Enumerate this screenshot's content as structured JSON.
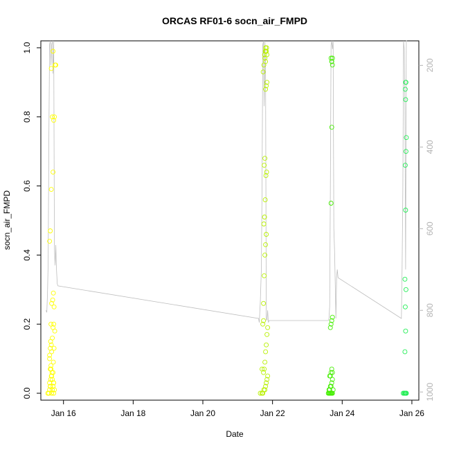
{
  "chart_data": {
    "type": "scatter",
    "title": "ORCAS RF01-6 socn_air_FMPD",
    "xlabel": "Date",
    "ylabel": "socn_air_FMPD",
    "x_unit": "day of January 2016",
    "xlim": [
      15.35,
      26.2
    ],
    "ylim": [
      -0.02,
      1.02
    ],
    "x_ticks": [
      {
        "value": 16,
        "label": "Jan 16"
      },
      {
        "value": 18,
        "label": "Jan 18"
      },
      {
        "value": 20,
        "label": "Jan 20"
      },
      {
        "value": 22,
        "label": "Jan 22"
      },
      {
        "value": 24,
        "label": "Jan 24"
      },
      {
        "value": 26,
        "label": "Jan 26"
      }
    ],
    "y_ticks": [
      "0.0",
      "0.2",
      "0.4",
      "0.6",
      "0.8",
      "1.0"
    ],
    "y2_lim": [
      1020,
      140
    ],
    "y2_ticks": [
      "200",
      "400",
      "600",
      "800",
      "1000"
    ],
    "grid": false,
    "legend": "none",
    "colors": {
      "flight1": "#ffff00",
      "flight2": "#c8f500",
      "flight3": "#99ff00",
      "flight4": "#66ff00",
      "flight5": "#33ff22",
      "flight6": "#22ee55",
      "pressure_line": "#bdbdbd",
      "axes": "#000000",
      "right_axis": "#b3b3b3"
    },
    "series": [
      {
        "color": "#ffff00",
        "x": [
          15.55,
          15.58,
          15.6,
          15.62,
          15.6,
          15.63,
          15.65,
          15.67,
          15.62,
          15.64,
          15.66,
          15.68,
          15.7,
          15.72,
          15.6,
          15.62,
          15.65,
          15.68,
          15.7,
          15.72,
          15.64,
          15.66,
          15.69,
          15.71,
          15.73,
          15.6,
          15.62,
          15.65,
          15.7,
          15.72,
          15.68,
          15.74,
          15.76,
          15.78,
          15.65,
          15.7,
          15.72,
          15.74,
          15.62,
          15.66,
          15.71,
          15.73,
          15.75,
          15.64,
          15.68,
          15.72,
          15.6,
          15.63,
          15.66,
          15.7
        ],
        "y": [
          0.0,
          0.0,
          0.01,
          0.02,
          0.03,
          0.04,
          0.05,
          0.06,
          0.07,
          0.08,
          0.0,
          0.01,
          0.02,
          0.03,
          0.11,
          0.13,
          0.14,
          0.16,
          0.19,
          0.2,
          0.2,
          0.26,
          0.27,
          0.29,
          0.25,
          0.44,
          0.47,
          0.59,
          0.64,
          0.79,
          0.8,
          0.8,
          0.95,
          0.95,
          0.94,
          0.99,
          0.0,
          0.01,
          0.02,
          0.05,
          0.09,
          0.13,
          0.18,
          0.07,
          0.04,
          0.03,
          0.1,
          0.15,
          0.12,
          0.06
        ]
      },
      {
        "color": "#b8f000",
        "x": [
          21.65,
          21.7,
          21.72,
          21.75,
          21.78,
          21.8,
          21.82,
          21.84,
          21.86,
          21.74,
          21.76,
          21.78,
          21.8,
          21.82,
          21.84,
          21.72,
          21.74,
          21.76,
          21.78,
          21.8,
          21.82,
          21.75,
          21.77,
          21.79,
          21.81,
          21.83,
          21.76,
          21.78,
          21.8,
          21.82,
          21.84,
          21.73,
          21.75,
          21.77,
          21.79,
          21.81,
          21.83,
          21.8,
          21.82,
          21.84,
          21.78,
          21.8,
          21.74,
          21.86,
          21.7
        ],
        "y": [
          0.0,
          0.0,
          0.0,
          0.01,
          0.01,
          0.02,
          0.03,
          0.04,
          0.05,
          0.06,
          0.07,
          0.09,
          0.12,
          0.14,
          0.17,
          0.2,
          0.26,
          0.34,
          0.4,
          0.43,
          0.46,
          0.49,
          0.51,
          0.56,
          0.63,
          0.64,
          0.66,
          0.68,
          0.88,
          0.89,
          0.9,
          0.93,
          0.95,
          0.98,
          0.99,
          0.99,
          1.0,
          1.0,
          0.99,
          0.98,
          0.97,
          0.96,
          0.21,
          0.19,
          0.07
        ]
      },
      {
        "color": "#44ee00",
        "x": [
          23.6,
          23.62,
          23.64,
          23.66,
          23.68,
          23.7,
          23.72,
          23.74,
          23.62,
          23.64,
          23.66,
          23.68,
          23.7,
          23.72,
          23.64,
          23.66,
          23.68,
          23.7,
          23.72,
          23.66,
          23.68,
          23.7,
          23.72,
          23.68,
          23.7,
          23.72,
          23.7,
          23.72,
          23.68,
          23.7
        ],
        "y": [
          0.0,
          0.0,
          0.0,
          0.0,
          0.0,
          0.0,
          0.0,
          0.01,
          0.01,
          0.01,
          0.02,
          0.02,
          0.03,
          0.04,
          0.05,
          0.05,
          0.06,
          0.07,
          0.06,
          0.19,
          0.2,
          0.21,
          0.22,
          0.55,
          0.77,
          0.95,
          0.96,
          0.97,
          0.97,
          0.96
        ]
      },
      {
        "color": "#22ee55",
        "x": [
          25.75,
          25.78,
          25.8,
          25.82,
          25.84,
          25.8,
          25.82,
          25.81,
          25.83,
          25.8,
          25.82,
          25.81,
          25.83,
          25.84,
          25.82,
          25.81,
          25.83,
          25.82,
          25.84,
          25.8
        ],
        "y": [
          0.0,
          0.0,
          0.0,
          0.0,
          0.0,
          0.12,
          0.18,
          0.25,
          0.3,
          0.33,
          0.53,
          0.66,
          0.7,
          0.74,
          0.85,
          0.88,
          0.9,
          0.9,
          0.0,
          0.0
        ]
      }
    ],
    "pressure_line": {
      "color": "#bdbdbd",
      "x": [
        15.5,
        15.52,
        15.54,
        15.56,
        15.58,
        15.6,
        15.62,
        15.64,
        15.66,
        15.68,
        15.7,
        15.72,
        15.74,
        15.76,
        15.78,
        15.8,
        15.82,
        15.84,
        21.6,
        21.62,
        21.65,
        21.68,
        21.7,
        21.72,
        21.74,
        21.76,
        21.78,
        21.8,
        21.82,
        21.84,
        21.86,
        21.88,
        21.9,
        23.6,
        23.62,
        23.64,
        23.66,
        23.68,
        23.7,
        23.72,
        23.74,
        23.76,
        23.78,
        23.8,
        23.82,
        23.84,
        23.86,
        23.88,
        25.7,
        25.72,
        25.74,
        25.76,
        25.78,
        25.8,
        25.82,
        25.84,
        25.86
      ],
      "y": [
        800,
        805,
        760,
        680,
        380,
        150,
        140,
        200,
        150,
        140,
        220,
        140,
        650,
        690,
        640,
        700,
        735,
        740,
        820,
        830,
        780,
        700,
        500,
        150,
        140,
        300,
        140,
        200,
        820,
        825,
        800,
        830,
        825,
        825,
        820,
        790,
        500,
        150,
        140,
        160,
        140,
        600,
        650,
        730,
        820,
        720,
        700,
        720,
        820,
        700,
        500,
        140,
        160,
        300,
        700,
        140,
        140
      ]
    }
  }
}
